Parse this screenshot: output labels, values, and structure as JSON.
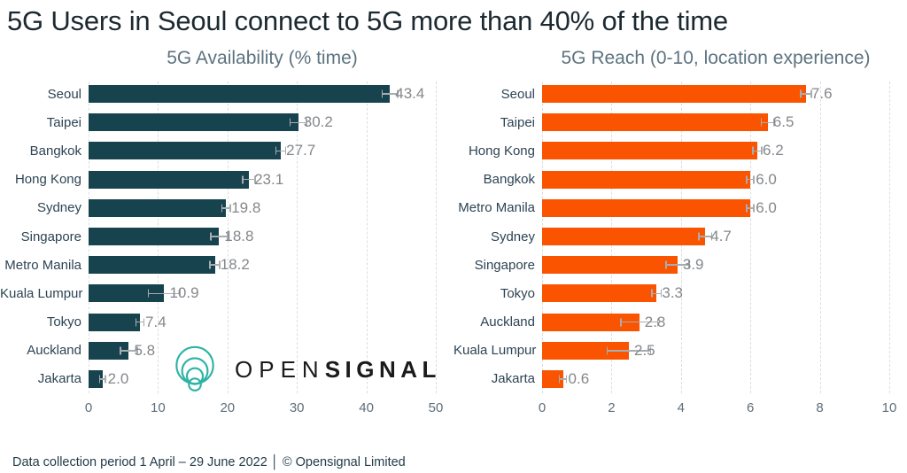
{
  "title": "5G Users in Seoul connect to 5G more than 40% of the time",
  "footer": "Data collection period 1 April – 29 June 2022  │  © Opensignal Limited",
  "logo": {
    "brand_prefix": "OPEN",
    "brand_suffix": "SIGNAL",
    "icon": "opensignal-circles-icon",
    "icon_color": "#2db3a4",
    "text_color": "#1b1b1b"
  },
  "colors": {
    "availability_bar": "#17434e",
    "reach_bar": "#fa5400",
    "grid": "#dadde1",
    "error_bar": "#a9adb0",
    "value_label": "#85878b",
    "category_label": "#2d4454",
    "tick_label": "#5f6d79",
    "chart_title": "#5d7380",
    "page_title": "#1c2930"
  },
  "chart_data": [
    {
      "type": "bar",
      "orientation": "horizontal",
      "title": "5G Availability (% time)",
      "categories": [
        "Seoul",
        "Taipei",
        "Bangkok",
        "Hong Kong",
        "Sydney",
        "Singapore",
        "Metro Manila",
        "Kuala Lumpur",
        "Tokyo",
        "Auckland",
        "Jakarta"
      ],
      "values": [
        43.4,
        30.2,
        27.7,
        23.1,
        19.8,
        18.8,
        18.2,
        10.9,
        7.4,
        5.8,
        2.0
      ],
      "errors": [
        1.2,
        1.3,
        0.8,
        1.0,
        0.7,
        1.3,
        0.8,
        2.4,
        0.7,
        1.3,
        0.5
      ],
      "bar_color": "#17434e",
      "xlim": [
        0,
        50
      ],
      "xticks": [
        0,
        10,
        20,
        30,
        40,
        50
      ],
      "grid": "dashed-vertical",
      "legend": "none"
    },
    {
      "type": "bar",
      "orientation": "horizontal",
      "title": "5G Reach (0-10, location experience)",
      "categories": [
        "Seoul",
        "Taipei",
        "Hong Kong",
        "Bangkok",
        "Metro Manila",
        "Sydney",
        "Singapore",
        "Tokyo",
        "Auckland",
        "Kuala Lumpur",
        "Jakarta"
      ],
      "values": [
        7.6,
        6.5,
        6.2,
        6.0,
        6.0,
        4.7,
        3.9,
        3.3,
        2.8,
        2.5,
        0.6
      ],
      "errors": [
        0.17,
        0.2,
        0.15,
        0.12,
        0.12,
        0.2,
        0.35,
        0.15,
        0.55,
        0.65,
        0.12
      ],
      "bar_color": "#fa5400",
      "xlim": [
        0,
        10
      ],
      "xticks": [
        0,
        2,
        4,
        6,
        8,
        10
      ],
      "grid": "dashed-vertical",
      "legend": "none"
    }
  ]
}
